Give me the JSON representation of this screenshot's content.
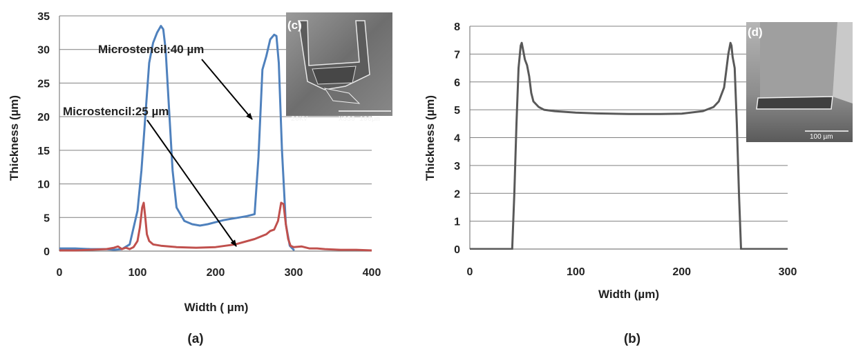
{
  "chart_data": [
    {
      "panel": "(a)",
      "type": "line",
      "xlabel": "Width ( µm)",
      "ylabel": "Thickness  (µm)",
      "xlim": [
        0,
        400
      ],
      "ylim": [
        0,
        35
      ],
      "xticks": [
        "0",
        "100",
        "200",
        "300",
        "400"
      ],
      "yticks": [
        "0",
        "5",
        "10",
        "15",
        "20",
        "25",
        "30",
        "35"
      ],
      "grid": true,
      "annotations": [
        "Microstencil:40 µm",
        "Microstencil:25 µm"
      ],
      "inset": {
        "label": "(c)",
        "scale_text": "X330 100µm",
        "kv_text": "20KV"
      },
      "series": [
        {
          "name": "Microstencil:40 µm",
          "color": "#4f81bd",
          "x": [
            0,
            20,
            40,
            60,
            70,
            80,
            90,
            100,
            105,
            110,
            115,
            120,
            125,
            130,
            133,
            136,
            140,
            145,
            150,
            160,
            170,
            180,
            190,
            200,
            210,
            220,
            230,
            240,
            250,
            255,
            260,
            265,
            270,
            275,
            278,
            281,
            285,
            290,
            295,
            300
          ],
          "y": [
            0.4,
            0.4,
            0.3,
            0.3,
            0.2,
            0.3,
            1.0,
            6.0,
            12.0,
            20.0,
            28.0,
            31.0,
            32.5,
            33.5,
            33.0,
            30.0,
            22.0,
            12.0,
            6.5,
            4.5,
            4.0,
            3.8,
            4.0,
            4.3,
            4.6,
            4.8,
            5.0,
            5.2,
            5.5,
            14.0,
            27.0,
            29.0,
            31.5,
            32.2,
            32.0,
            28.0,
            15.0,
            4.0,
            0.8,
            0.2
          ]
        },
        {
          "name": "Microstencil:25 µm",
          "color": "#c0504d",
          "x": [
            0,
            20,
            40,
            60,
            70,
            75,
            80,
            85,
            90,
            95,
            100,
            103,
            106,
            108,
            110,
            112,
            115,
            120,
            130,
            150,
            175,
            200,
            225,
            250,
            265,
            270,
            275,
            280,
            284,
            287,
            290,
            293,
            296,
            300,
            310,
            320,
            330,
            340,
            360,
            380,
            400
          ],
          "y": [
            0.1,
            0.1,
            0.2,
            0.3,
            0.5,
            0.7,
            0.3,
            0.5,
            0.3,
            0.6,
            1.5,
            3.5,
            6.5,
            7.2,
            5.0,
            2.5,
            1.5,
            1.0,
            0.8,
            0.6,
            0.5,
            0.6,
            1.0,
            1.8,
            2.5,
            3.0,
            3.2,
            4.5,
            7.2,
            7.0,
            4.0,
            1.8,
            0.8,
            0.6,
            0.7,
            0.4,
            0.4,
            0.3,
            0.2,
            0.2,
            0.1
          ]
        }
      ]
    },
    {
      "panel": "(b)",
      "type": "line",
      "xlabel": "Width (µm)",
      "ylabel": "Thickness (µm)",
      "xlim": [
        0,
        300
      ],
      "ylim": [
        0,
        8
      ],
      "xticks": [
        "0",
        "100",
        "200",
        "300"
      ],
      "yticks": [
        "0",
        "1",
        "2",
        "3",
        "4",
        "5",
        "6",
        "7",
        "8"
      ],
      "grid": true,
      "inset": {
        "label": "(d)",
        "scale_text": "100 µm"
      },
      "series": [
        {
          "color": "#595959",
          "x": [
            0,
            20,
            40,
            42,
            44,
            46,
            48,
            49,
            50,
            52,
            54,
            56,
            58,
            60,
            65,
            70,
            80,
            100,
            120,
            150,
            180,
            200,
            220,
            230,
            235,
            240,
            242,
            244,
            246,
            247,
            248,
            250,
            252,
            254,
            256,
            260,
            280,
            300
          ],
          "y": [
            0,
            0,
            0,
            2.0,
            4.5,
            6.5,
            7.3,
            7.4,
            7.2,
            6.8,
            6.6,
            6.2,
            5.6,
            5.3,
            5.1,
            5.0,
            4.95,
            4.9,
            4.87,
            4.85,
            4.85,
            4.86,
            4.95,
            5.1,
            5.3,
            5.8,
            6.4,
            7.0,
            7.4,
            7.3,
            6.9,
            6.5,
            4.5,
            2.0,
            0,
            0,
            0,
            0
          ]
        }
      ]
    }
  ],
  "panels": {
    "a": {
      "label": "(a)"
    },
    "b": {
      "label": "(b)"
    }
  }
}
